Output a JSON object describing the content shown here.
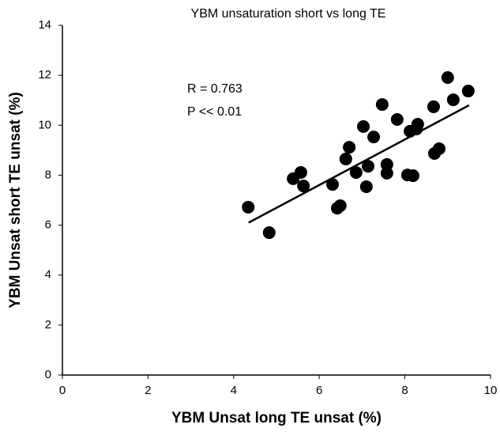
{
  "chart_data": {
    "type": "scatter",
    "title": "YBM unsaturation short vs long TE",
    "x_label": "YBM Unsat long TE unsat (%)",
    "y_label": "YBM Unsat short TE unsat (%)",
    "annotations": [
      "R = 0.763",
      "P << 0.01"
    ],
    "x": [
      4.34,
      4.83,
      5.39,
      5.57,
      5.63,
      6.31,
      6.42,
      6.49,
      6.62,
      6.7,
      6.86,
      7.03,
      7.1,
      7.14,
      7.27,
      7.47,
      7.58,
      7.58,
      7.82,
      8.06,
      8.19,
      8.12,
      8.27,
      8.3,
      8.67,
      8.69,
      8.8,
      9.0,
      9.13,
      9.48
    ],
    "values": [
      6.72,
      5.7,
      7.86,
      8.11,
      7.57,
      7.63,
      6.68,
      6.78,
      8.65,
      9.12,
      8.11,
      9.95,
      7.54,
      8.36,
      9.53,
      10.83,
      8.43,
      8.08,
      10.23,
      8.01,
      7.98,
      9.76,
      9.85,
      10.04,
      10.74,
      8.87,
      9.06,
      11.91,
      11.02,
      11.37
    ],
    "color": "#000000",
    "trendline": {
      "x": [
        4.35,
        9.5
      ],
      "y": [
        6.1,
        10.8
      ]
    },
    "xlim": [
      0,
      10
    ],
    "ylim": [
      0,
      14
    ],
    "xticks": [
      0,
      2,
      4,
      6,
      8,
      10
    ],
    "yticks": [
      0,
      2,
      4,
      6,
      8,
      10,
      12,
      14
    ]
  }
}
